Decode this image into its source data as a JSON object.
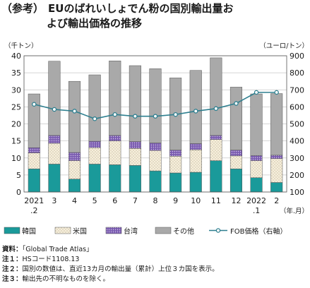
{
  "title": {
    "tag": "（参考）",
    "line1": "EUのばれいしょでん粉の国別輸出量お",
    "line2": "よび輸出価格の推移"
  },
  "notes": [
    {
      "head": "資料：",
      "text": "「Global Trade Atlas」"
    },
    {
      "head": "注１：",
      "text": "HSコード1108.13"
    },
    {
      "head": "注２：",
      "text": "国別の数値は、直近13カ月の輸出量（累計）上位３カ国を表示。"
    },
    {
      "head": "注３：",
      "text": "輸出先の不明なものを除く。"
    }
  ],
  "chart_data": {
    "type": "bar",
    "stacked": true,
    "y_left_label": "（千トン）",
    "y_right_label": "（ユーロ/トン）",
    "x_unit_label": "（年.月）",
    "ylim_left": [
      0,
      40
    ],
    "ylim_right": [
      100,
      900
    ],
    "y_left_ticks": [
      0,
      5,
      10,
      15,
      20,
      25,
      30,
      35,
      40
    ],
    "y_right_ticks": [
      100,
      200,
      300,
      400,
      500,
      600,
      700,
      800,
      900
    ],
    "categories": [
      {
        "top": "2021",
        "bottom": ".2"
      },
      {
        "top": "3",
        "bottom": ""
      },
      {
        "top": "4",
        "bottom": ""
      },
      {
        "top": "5",
        "bottom": ""
      },
      {
        "top": "6",
        "bottom": ""
      },
      {
        "top": "7",
        "bottom": ""
      },
      {
        "top": "8",
        "bottom": ""
      },
      {
        "top": "9",
        "bottom": ""
      },
      {
        "top": "10",
        "bottom": ""
      },
      {
        "top": "11",
        "bottom": ""
      },
      {
        "top": "12",
        "bottom": ""
      },
      {
        "top": "2022",
        "bottom": ".1"
      },
      {
        "top": "2",
        "bottom": ""
      }
    ],
    "series": [
      {
        "name": "韓国",
        "color": "#1a9a9a",
        "pattern": "solid",
        "values": [
          6.8,
          8.2,
          3.8,
          8.2,
          8.0,
          7.8,
          6.2,
          5.6,
          5.8,
          9.2,
          6.8,
          4.2,
          2.8
        ]
      },
      {
        "name": "米国",
        "color": "#f3ead2",
        "pattern": "dots",
        "values": [
          4.7,
          6.1,
          5.4,
          4.8,
          7.0,
          5.0,
          6.0,
          4.9,
          6.6,
          6.2,
          3.8,
          5.0,
          7.0
        ]
      },
      {
        "name": "台湾",
        "color": "#7a5bb0",
        "pattern": "hatch",
        "values": [
          1.5,
          2.3,
          2.4,
          1.9,
          1.6,
          2.0,
          2.2,
          1.8,
          1.8,
          1.2,
          1.7,
          1.5,
          1.0
        ]
      },
      {
        "name": "その他",
        "color": "#a9a9a9",
        "pattern": "solid",
        "values": [
          15.8,
          21.8,
          20.9,
          19.5,
          21.9,
          22.3,
          21.8,
          21.2,
          21.5,
          22.8,
          18.5,
          18.1,
          18.1
        ]
      }
    ],
    "line_series": {
      "name": "FOB価格（右軸）",
      "color": "#2e7f8f",
      "values": [
        615,
        585,
        575,
        530,
        555,
        545,
        545,
        555,
        575,
        590,
        620,
        685,
        685
      ]
    },
    "grid": true,
    "legend_position": "bottom"
  }
}
